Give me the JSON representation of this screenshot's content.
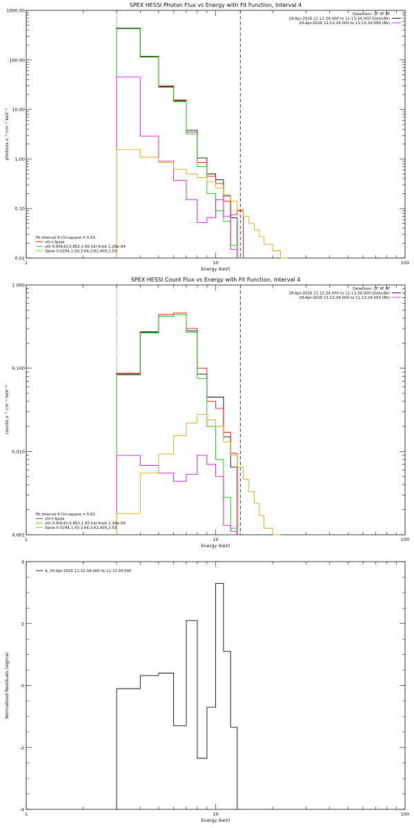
{
  "chart_data": [
    {
      "type": "line",
      "title": "SPEX HESSI Photon Flux vs Energy with Fit Function, Interval 4",
      "xlabel": "Energy (keV)",
      "ylabel": "photons s⁻¹ cm⁻² keV⁻¹",
      "xscale": "log",
      "yscale": "log",
      "xlim": [
        1,
        100
      ],
      "ylim": [
        0.01,
        1000
      ],
      "xticks": [
        "1",
        "10",
        "100"
      ],
      "yticks": [
        "0.01",
        "0.10",
        "1.00",
        "10.00",
        "100.00",
        "1000.00"
      ],
      "legend_top": [
        "Detectors: 1F 3F 8F",
        "29-Apr-2016 11:12:34.000 to 11:13:34.000 (Data-Bk)",
        "29-Apr-2016 11:12:24.000 to 11:13:24.000 (Bk)"
      ],
      "legend_bottom": [
        "Fit Interval 4   Chi-square = 5.61",
        "vth+3pow",
        "vth 0.00142,0.852,1.00  full thick 1.26e-04",
        "3pow 0.0294,1.50,3.64,3.62,400,2.50"
      ],
      "vlines": [
        3.0,
        13.5
      ],
      "edges": [
        3.0,
        3.5,
        4.0,
        4.5,
        5.0,
        5.5,
        6.0,
        6.5,
        7.0,
        7.5,
        8.0,
        8.5,
        9.0,
        9.5,
        10.0,
        11.0,
        12.0,
        13.0,
        14.0,
        15.0,
        16.0,
        17.0,
        18.0,
        20.0,
        22.0,
        24.0
      ],
      "series": [
        {
          "color": "#000000",
          "values": [
            430,
            430,
            115,
            115,
            29,
            29,
            15,
            15,
            3.8,
            3.8,
            1.05,
            1.05,
            0.5,
            0.5,
            0.38,
            0.18,
            0.065,
            null,
            null,
            null,
            null,
            null,
            null,
            null,
            null
          ]
        },
        {
          "color": "#ff0000",
          "values": [
            440,
            440,
            118,
            118,
            30,
            30,
            15.5,
            15.5,
            3.5,
            3.5,
            0.85,
            0.85,
            0.45,
            0.45,
            0.32,
            0.14,
            0.075,
            0.09,
            null,
            null,
            null,
            null,
            null,
            null,
            null
          ]
        },
        {
          "color": "#00cc00",
          "values": [
            440,
            440,
            118,
            118,
            28,
            28,
            14.5,
            14.5,
            3.2,
            3.2,
            0.7,
            0.7,
            0.2,
            0.2,
            0.09,
            0.055,
            0.018,
            null,
            null,
            null,
            null,
            null,
            null,
            null,
            null
          ]
        },
        {
          "color": "#e000e0",
          "values": [
            45,
            45,
            2.9,
            2.9,
            0.9,
            0.9,
            0.37,
            0.37,
            0.15,
            0.15,
            0.052,
            0.052,
            0.065,
            0.065,
            0.15,
            0.07,
            0.015,
            null,
            null,
            null,
            null,
            null,
            null,
            null,
            null
          ]
        },
        {
          "color": "#d4aa00",
          "values": [
            1.55,
            1.55,
            1.08,
            1.08,
            0.84,
            0.84,
            0.62,
            0.62,
            0.5,
            0.5,
            0.42,
            0.42,
            0.35,
            0.35,
            0.26,
            0.19,
            0.14,
            0.095,
            0.07,
            0.05,
            0.037,
            0.027,
            0.019,
            0.014,
            0.01
          ]
        }
      ]
    },
    {
      "type": "line",
      "title": "SPEX HESSI Count Flux vs Energy with Fit Function, Interval 4",
      "xlabel": "Energy (keV)",
      "ylabel": "counts s⁻¹ cm⁻² keV⁻¹",
      "xscale": "log",
      "yscale": "log",
      "xlim": [
        1,
        100
      ],
      "ylim": [
        0.001,
        1
      ],
      "xticks": [
        "1",
        "10",
        "100"
      ],
      "yticks": [
        "0.001",
        "0.010",
        "0.100",
        "1.000"
      ],
      "legend_top": [
        "Detectors: 1F 3F 8F",
        "29-Apr-2016 11:12:34.000 to 11:13:34.000 (Data-Bk)",
        "29-Apr-2016 11:12:24.000 to 11:13:24.000 (Bk)"
      ],
      "legend_bottom": [
        "Fit Interval 4   Chi-square = 5.61",
        "vth+3pow",
        "vth 0.00142,0.852,1.00  full thick 1.26e-04",
        "3pow 0.0294,1.50,3.64,3.62,400,2.50"
      ],
      "vlines": [
        3.0,
        13.5
      ],
      "edges": [
        3.0,
        3.5,
        4.0,
        4.5,
        5.0,
        5.5,
        6.0,
        6.5,
        7.0,
        7.5,
        8.0,
        8.5,
        9.0,
        9.5,
        10.0,
        11.0,
        12.0,
        13.0,
        14.0,
        15.0,
        16.0,
        17.0,
        18.0,
        20.0,
        22.0,
        24.0
      ],
      "series": [
        {
          "color": "#000000",
          "values": [
            0.085,
            0.085,
            0.27,
            0.27,
            0.42,
            0.42,
            0.44,
            0.44,
            0.28,
            0.28,
            0.085,
            0.085,
            0.045,
            0.045,
            0.045,
            0.015,
            0.0065,
            null,
            null,
            null,
            null,
            null,
            null,
            null,
            null
          ]
        },
        {
          "color": "#ff0000",
          "values": [
            0.087,
            0.087,
            0.275,
            0.275,
            0.44,
            0.44,
            0.46,
            0.46,
            0.3,
            0.3,
            0.1,
            0.1,
            0.04,
            0.04,
            0.033,
            0.017,
            0.0095,
            null,
            null,
            null,
            null,
            null,
            null,
            null,
            null
          ]
        },
        {
          "color": "#00cc00",
          "values": [
            0.083,
            0.083,
            0.265,
            0.265,
            0.42,
            0.42,
            0.44,
            0.44,
            0.27,
            0.27,
            0.075,
            0.075,
            0.02,
            0.02,
            0.008,
            0.0028,
            0.0012,
            null,
            null,
            null,
            null,
            null,
            null,
            null,
            null
          ]
        },
        {
          "color": "#e000e0",
          "values": [
            0.009,
            0.009,
            0.0068,
            0.0068,
            0.0055,
            0.0055,
            0.0044,
            0.0044,
            0.0053,
            0.0053,
            0.009,
            0.009,
            0.007,
            0.007,
            0.005,
            0.0013,
            0.0011,
            null,
            null,
            null,
            null,
            null,
            null,
            null,
            null
          ]
        },
        {
          "color": "#d4aa00",
          "values": [
            0.0018,
            0.0018,
            0.0055,
            0.0055,
            0.0093,
            0.0093,
            0.0155,
            0.0155,
            0.022,
            0.022,
            0.028,
            0.028,
            0.024,
            0.024,
            0.02,
            0.013,
            0.009,
            0.0065,
            0.0046,
            0.0033,
            0.0024,
            0.0017,
            0.0012,
            0.001,
            null
          ]
        }
      ]
    },
    {
      "type": "line",
      "title": "",
      "xlabel": "Energy (keV)",
      "ylabel": "Normalized Residuals (sigma)",
      "xscale": "log",
      "yscale": "linear",
      "xlim": [
        1,
        100
      ],
      "ylim": [
        -4,
        4
      ],
      "xticks": [
        "1",
        "10",
        "100"
      ],
      "yticks": [
        "-4",
        "-2",
        "0",
        "2",
        "4"
      ],
      "legend": "4, 29-Apr-2016 11:12:34.000 to 11:13:34.000",
      "edges": [
        3.0,
        3.5,
        4.0,
        4.5,
        5.0,
        5.5,
        6.0,
        6.5,
        7.0,
        7.5,
        8.0,
        8.5,
        9.0,
        9.5,
        10.0,
        11.0,
        12.0,
        13.0
      ],
      "series": [
        {
          "color": "#000000",
          "values": [
            -0.1,
            -0.1,
            0.32,
            0.32,
            0.4,
            0.4,
            -1.3,
            -1.3,
            2.1,
            2.1,
            -2.35,
            -2.35,
            -0.7,
            -0.7,
            3.3,
            1.1,
            -1.35
          ]
        }
      ]
    }
  ]
}
